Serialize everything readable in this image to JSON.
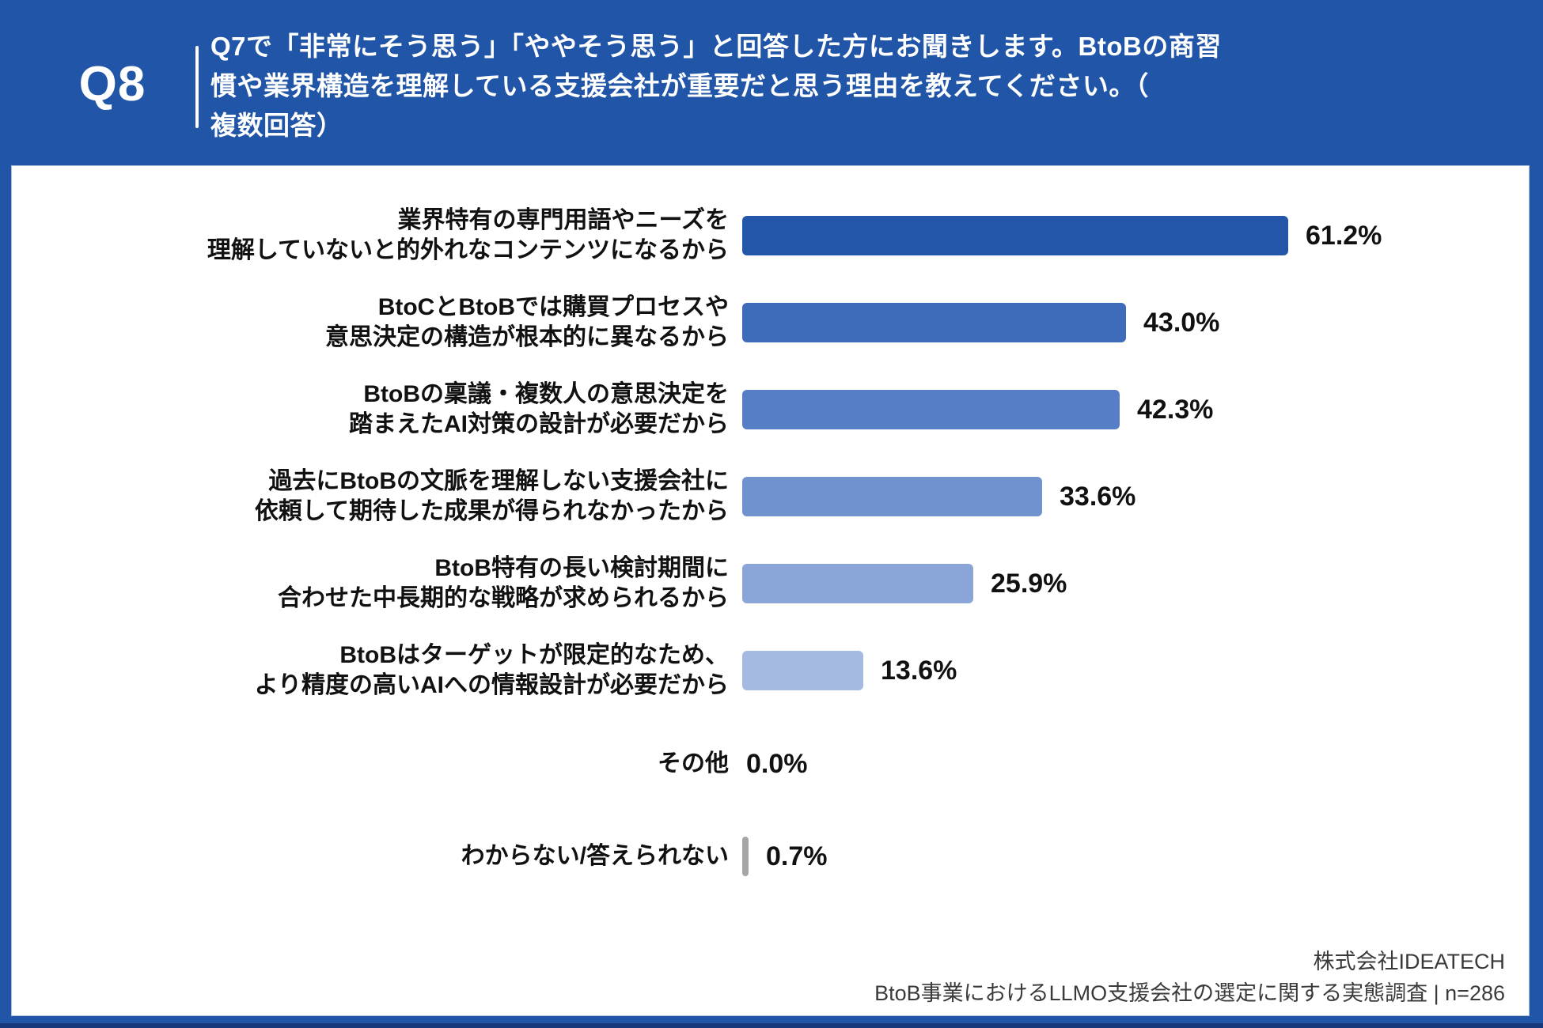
{
  "header": {
    "question_number": "Q8",
    "question_text": "Q7で「非常にそう思う」「ややそう思う」と回答した方にお聞きします。BtoBの商習\n慣や業界構造を理解している支援会社が重要だと思う理由を教えてください。（\n複数回答）"
  },
  "chart_data": {
    "type": "bar",
    "orientation": "horizontal",
    "unit": "%",
    "xlim": [
      0,
      65
    ],
    "grid": false,
    "legend": false,
    "categories": [
      "業界特有の専門用語やニーズを理解していないと的外れなコンテンツになるから",
      "BtoCとBtoBでは購買プロセスや意思決定の構造が根本的に異なるから",
      "BtoBの稟議・複数人の意思決定を踏まえたAI対策の設計が必要だから",
      "過去にBtoBの文脈を理解しない支援会社に依頼して期待した成果が得られなかったから",
      "BtoB特有の長い検討期間に合わせた中長期的な戦略が求められるから",
      "BtoBはターゲットが限定的なため、より精度の高いAIへの情報設計が必要だから",
      "その他",
      "わからない/答えられない"
    ],
    "values": [
      61.2,
      43.0,
      42.3,
      33.6,
      25.9,
      13.6,
      0.0,
      0.7
    ],
    "items": [
      {
        "label": "業界特有の専門用語やニーズを\n理解していないと的外れなコンテンツになるから",
        "value": 61.2,
        "value_label": "61.2%",
        "color": "#2355A8"
      },
      {
        "label": "BtoCとBtoBでは購買プロセスや\n意思決定の構造が根本的に異なるから",
        "value": 43.0,
        "value_label": "43.0%",
        "color": "#3E6CBB"
      },
      {
        "label": "BtoBの稟議・複数人の意思決定を\n踏まえたAI対策の設計が必要だから",
        "value": 42.3,
        "value_label": "42.3%",
        "color": "#567EC6"
      },
      {
        "label": "過去にBtoBの文脈を理解しない支援会社に\n依頼して期待した成果が得られなかったから",
        "value": 33.6,
        "value_label": "33.6%",
        "color": "#7092CE"
      },
      {
        "label": "BtoB特有の長い検討期間に\n合わせた中長期的な戦略が求められるから",
        "value": 25.9,
        "value_label": "25.9%",
        "color": "#8AA5D8"
      },
      {
        "label": "BtoBはターゲットが限定的なため、\nより精度の高いAIへの情報設計が必要だから",
        "value": 13.6,
        "value_label": "13.6%",
        "color": "#A5BAE2"
      },
      {
        "label": "その他",
        "value": 0.0,
        "value_label": "0.0%",
        "color": "#A6A6A6"
      },
      {
        "label": "わからない/答えられない",
        "value": 0.7,
        "value_label": "0.7%",
        "color": "#A6A6A6"
      }
    ]
  },
  "footer": {
    "company": "株式会社IDEATECH",
    "survey": "BtoB事業におけるLLMO支援会社の選定に関する実態調査 | n=286"
  },
  "colors": {
    "frame_blue": "#2155A7",
    "frame_bottom_edge": "#18387C",
    "card_background": "#FFFFFF",
    "card_border": "#AEBFD4",
    "label_text": "#111111",
    "header_text": "#FFFFFF",
    "footer_text": "#3A3A3A",
    "bar_gray": "#A6A6A6"
  }
}
